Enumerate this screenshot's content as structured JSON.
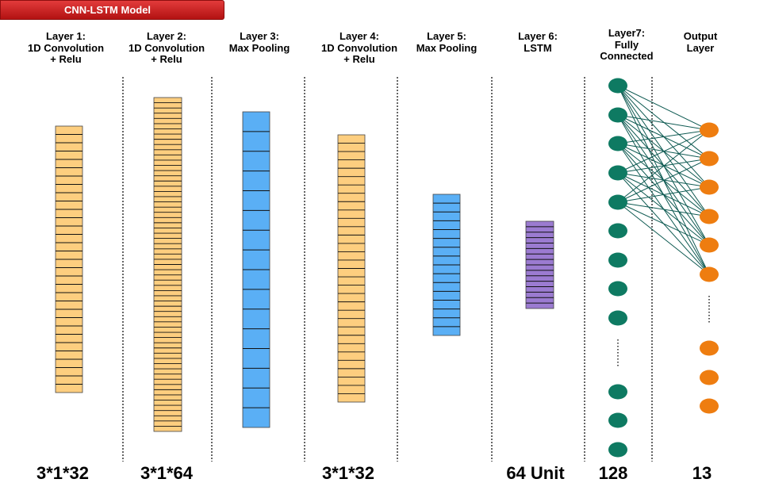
{
  "title": "CNN-LSTM Model",
  "layers": [
    {
      "id": "l1",
      "lines": [
        "Layer 1:",
        "1D Convolution",
        "+ Relu"
      ],
      "size": "3*1*32"
    },
    {
      "id": "l2",
      "lines": [
        "Layer 2:",
        "1D Convolution",
        "+ Relu"
      ],
      "size": "3*1*64"
    },
    {
      "id": "l3",
      "lines": [
        "Layer 3:",
        "Max Pooling"
      ],
      "size": ""
    },
    {
      "id": "l4",
      "lines": [
        "Layer 4:",
        "1D Convolution",
        "+ Relu"
      ],
      "size": "3*1*32"
    },
    {
      "id": "l5",
      "lines": [
        "Layer 5:",
        "Max Pooling"
      ],
      "size": ""
    },
    {
      "id": "l6",
      "lines": [
        "Layer 6:",
        "LSTM"
      ],
      "size": "64 Unit"
    },
    {
      "id": "l7",
      "lines": [
        "Layer7:",
        "Fully",
        "Connected"
      ],
      "size": "128"
    },
    {
      "id": "out",
      "lines": [
        "Output",
        "Layer"
      ],
      "size": "13"
    }
  ],
  "colors": {
    "conv": "#fdce7f",
    "pool": "#5aaff5",
    "lstm": "#9b7bd1",
    "fc_node": "#0e7a62",
    "out_node": "#ee7d10",
    "edge": "#0e5a52",
    "banner": "#cc2222"
  }
}
